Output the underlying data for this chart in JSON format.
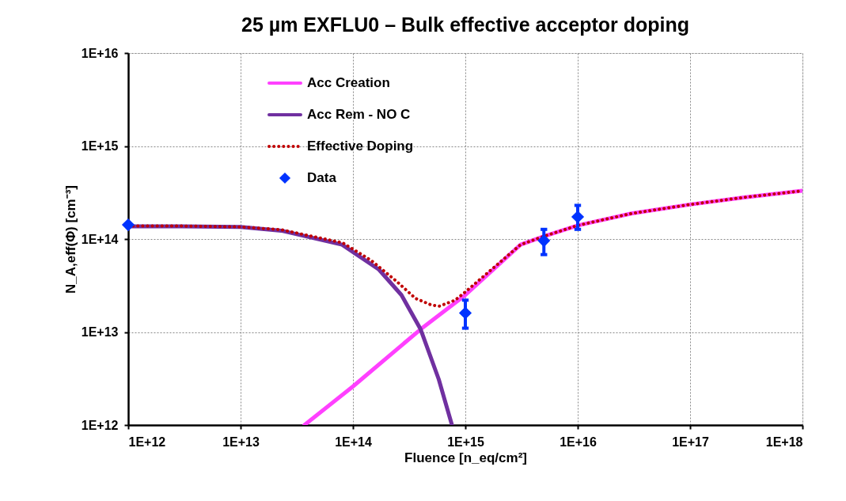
{
  "chart_data": {
    "type": "line",
    "title": "25 µm EXFLU0 – Bulk effective acceptor doping",
    "xlabel": "Fluence [n_eq/cm²]",
    "ylabel": "N_A,eff(Φ) [cm⁻³]",
    "log": "xy",
    "grid": true,
    "legend": "top left",
    "xlim": [
      1000000000000.0,
      1e+18
    ],
    "ylim": [
      1000000000000.0,
      1e+16
    ],
    "xticks": [
      {
        "value": 1000000000000.0,
        "label": "1E+12"
      },
      {
        "value": 10000000000000.0,
        "label": "1E+13"
      },
      {
        "value": 100000000000000.0,
        "label": "1E+14"
      },
      {
        "value": 1000000000000000.0,
        "label": "1E+15"
      },
      {
        "value": 1e+16,
        "label": "1E+16"
      },
      {
        "value": 1e+17,
        "label": "1E+17"
      },
      {
        "value": 1e+18,
        "label": "1E+18"
      }
    ],
    "yticks": [
      {
        "value": 1000000000000.0,
        "label": "1E+12"
      },
      {
        "value": 10000000000000.0,
        "label": "1E+13"
      },
      {
        "value": 100000000000000.0,
        "label": "1E+14"
      },
      {
        "value": 1000000000000000.0,
        "label": "1E+15"
      },
      {
        "value": 1e+16,
        "label": "1E+16"
      }
    ],
    "series": [
      {
        "name": "Acc Creation",
        "line_style": "solid",
        "color": "#ff40ff",
        "x": [
          37000000000000.0,
          100000000000000.0,
          400000000000000.0,
          1000000000000000.0,
          3100000000000000.0,
          5000000000000000.0,
          1e+16,
          3e+16,
          1e+17,
          3e+17,
          1e+18
        ],
        "values": [
          1000000000000.0,
          2600000000000.0,
          10700000000000.0,
          25000000000000.0,
          87000000000000.0,
          107000000000000.0,
          140000000000000.0,
          188000000000000.0,
          235000000000000.0,
          280000000000000.0,
          330000000000000.0
        ]
      },
      {
        "name": "Acc Rem - NO C",
        "line_style": "solid",
        "color": "#7030a0",
        "x": [
          1000000000000.0,
          3000000000000.0,
          10000000000000.0,
          23000000000000.0,
          80000000000000.0,
          170000000000000.0,
          270000000000000.0,
          400000000000000.0,
          580000000000000.0,
          760000000000000.0
        ],
        "values": [
          137000000000000.0,
          137000000000000.0,
          135000000000000.0,
          123000000000000.0,
          87000000000000.0,
          47000000000000.0,
          25000000000000.0,
          10700000000000.0,
          3100000000000.0,
          1000000000000.0
        ]
      },
      {
        "name": "Effective Doping",
        "line_style": "dotted",
        "color": "#c00000",
        "x": [
          1000000000000.0,
          3000000000000.0,
          10000000000000.0,
          23000000000000.0,
          81000000000000.0,
          145000000000000.0,
          245000000000000.0,
          360000000000000.0,
          500000000000000.0,
          590000000000000.0,
          810000000000000.0,
          1000000000000000.0,
          3100000000000000.0,
          5000000000000000.0,
          1e+16,
          3e+16,
          1e+17,
          3e+17,
          1e+18
        ],
        "values": [
          138000000000000.0,
          138000000000000.0,
          135000000000000.0,
          126000000000000.0,
          91000000000000.0,
          59000000000000.0,
          35000000000000.0,
          23000000000000.0,
          19500000000000.0,
          19000000000000.0,
          22000000000000.0,
          27000000000000.0,
          87000000000000.0,
          107000000000000.0,
          140000000000000.0,
          188000000000000.0,
          235000000000000.0,
          280000000000000.0,
          330000000000000.0
        ]
      },
      {
        "name": "Data",
        "type": "scatter",
        "marker": "diamond",
        "color": "#0033ff",
        "x": [
          1000000000000.0,
          1000000000000000.0,
          5000000000000000.0,
          1e+16
        ],
        "values": [
          142000000000000.0,
          16000000000000.0,
          96000000000000.0,
          173000000000000.0
        ],
        "errors": [
          null,
          [
            11000000000000.0,
            22000000000000.0
          ],
          [
            68000000000000.0,
            127000000000000.0
          ],
          [
            127000000000000.0,
            230000000000000.0
          ]
        ]
      }
    ]
  }
}
